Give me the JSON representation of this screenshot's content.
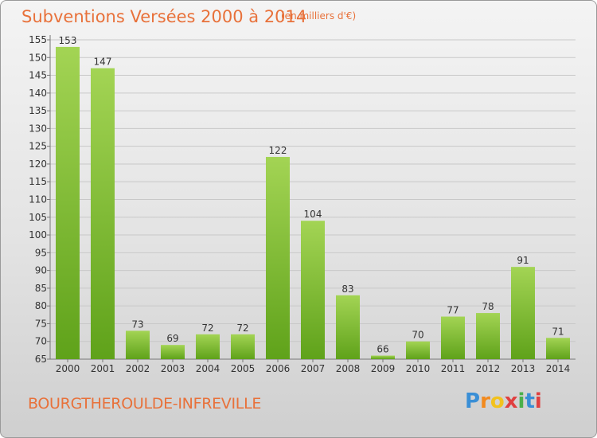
{
  "title": "Subventions Versées 2000 à 2014",
  "subtitle": "(en milliers d'€)",
  "commune": "BOURGTHEROULDE-INFREVILLE",
  "logo": "Proxiti",
  "colors": {
    "bar_top": "#a3d454",
    "bar_bottom": "#5fa21a",
    "text_accent": "#e8713a"
  },
  "chart_data": {
    "type": "bar",
    "categories": [
      "2000",
      "2001",
      "2002",
      "2003",
      "2004",
      "2005",
      "2006",
      "2007",
      "2008",
      "2009",
      "2010",
      "2011",
      "2012",
      "2013",
      "2014"
    ],
    "values": [
      153,
      147,
      73,
      69,
      72,
      72,
      122,
      104,
      83,
      66,
      70,
      77,
      78,
      91,
      71
    ],
    "ylim": [
      65,
      155
    ],
    "yticks": [
      65,
      70,
      75,
      80,
      85,
      90,
      95,
      100,
      105,
      110,
      115,
      120,
      125,
      130,
      135,
      140,
      145,
      150,
      155
    ],
    "grid": true,
    "data_labels": true
  }
}
